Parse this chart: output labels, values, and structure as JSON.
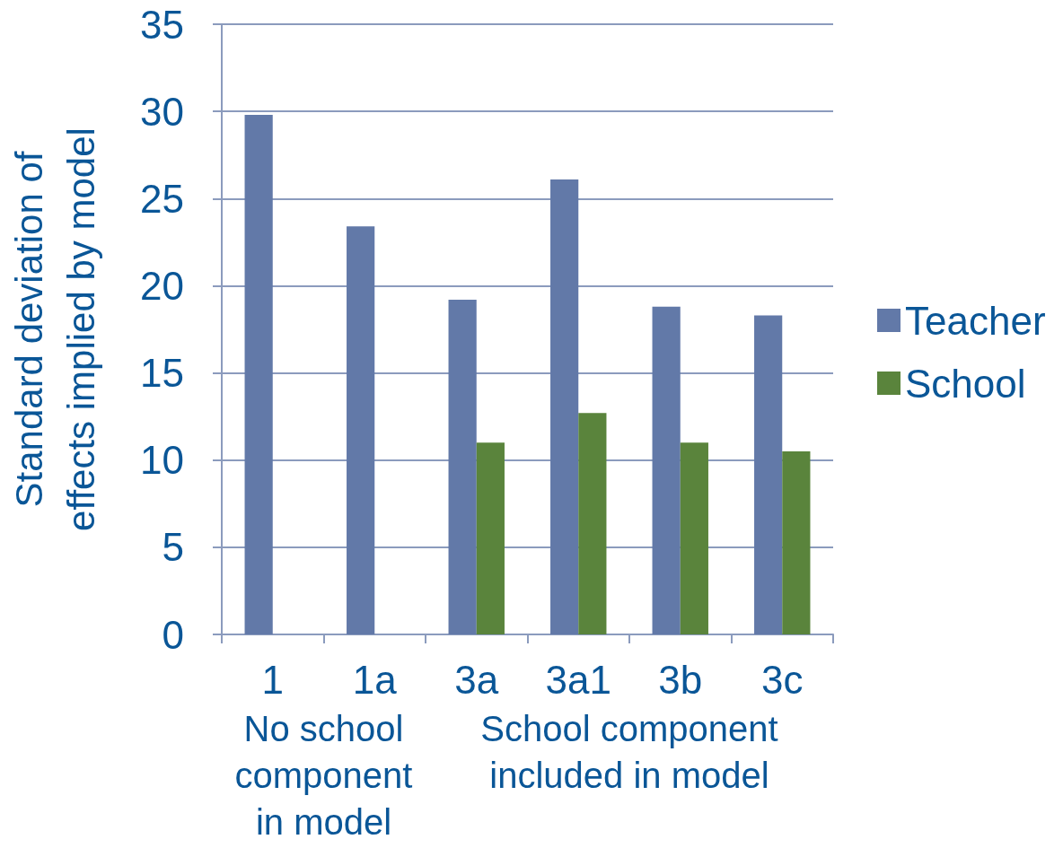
{
  "chart_data": {
    "type": "bar",
    "ylabel": "Standard deviation of effects implied by model",
    "categories": [
      "1",
      "1a",
      "3a",
      "3a1",
      "3b",
      "3c"
    ],
    "series": [
      {
        "name": "Teacher",
        "color": "#6279a8",
        "values": [
          29.8,
          23.4,
          19.2,
          26.1,
          18.8,
          18.3
        ]
      },
      {
        "name": "School",
        "color": "#5a843c",
        "values": [
          null,
          null,
          11.0,
          12.7,
          11.0,
          10.5
        ]
      }
    ],
    "ylim": [
      0,
      35
    ],
    "yticks": [
      0,
      5,
      10,
      15,
      20,
      25,
      30,
      35
    ],
    "grid": "y",
    "legend": "right",
    "annotations": [
      "No school component in model",
      "School component included in model"
    ]
  }
}
